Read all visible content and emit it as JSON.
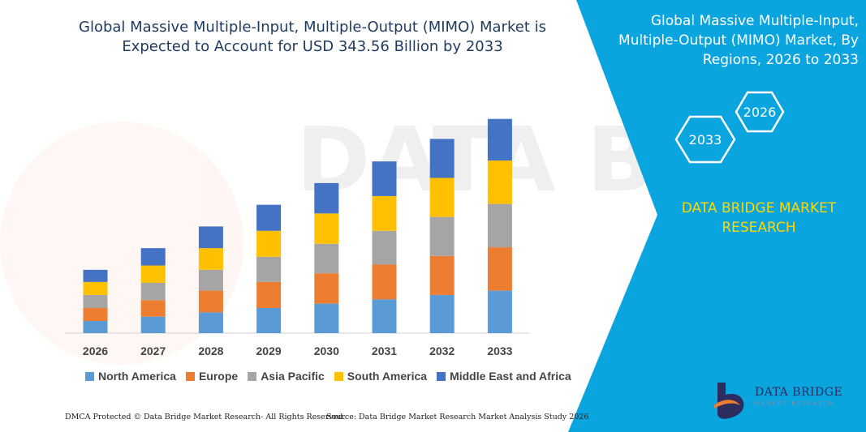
{
  "header": {
    "title": "Global Massive Multiple-Input, Multiple-Output (MIMO) Market is Expected to Account for USD 343.56 Billion by 2033"
  },
  "side_panel": {
    "title": "Global Massive Multiple-Input, Multiple-Output (MIMO) Market, By Regions, 2026 to 2033",
    "hex_start_year": "2026",
    "hex_end_year": "2033",
    "brand": "DATA BRIDGE MARKET RESEARCH",
    "background_color": "#0aa4df",
    "brand_color": "#ffd700"
  },
  "footer": {
    "left": "DMCA Protected © Data Bridge Market Research- All Rights Reserved.",
    "right": "Source: Data Bridge Market Research Market Analysis Study 2026"
  },
  "logo": {
    "name": "DATA BRIDGE",
    "tagline": "MARKET RESEARCH"
  },
  "chart_data": {
    "type": "bar",
    "stacked": true,
    "title": "Global Massive Multiple-Input, Multiple-Output (MIMO) Market is Expected to Account for USD 343.56 Billion by 2033",
    "xlabel": "",
    "ylabel": "",
    "categories": [
      "2026",
      "2027",
      "2028",
      "2029",
      "2030",
      "2031",
      "2032",
      "2033"
    ],
    "legend_position": "bottom",
    "grid": false,
    "series": [
      {
        "name": "North America",
        "color": "#5b9bd5",
        "values": [
          14,
          19,
          24,
          29,
          34,
          39,
          44,
          49
        ]
      },
      {
        "name": "Europe",
        "color": "#ed7d31",
        "values": [
          15,
          19,
          25,
          30,
          35,
          40,
          45,
          50
        ]
      },
      {
        "name": "Asia Pacific",
        "color": "#a5a5a5",
        "values": [
          15,
          20,
          24,
          29,
          34,
          39,
          45,
          50
        ]
      },
      {
        "name": "South America",
        "color": "#ffc000",
        "values": [
          15,
          20,
          25,
          30,
          35,
          40,
          45,
          50
        ]
      },
      {
        "name": "Middle East and Africa",
        "color": "#4472c4",
        "values": [
          14,
          20,
          25,
          30,
          35,
          40,
          45,
          48
        ]
      }
    ]
  }
}
